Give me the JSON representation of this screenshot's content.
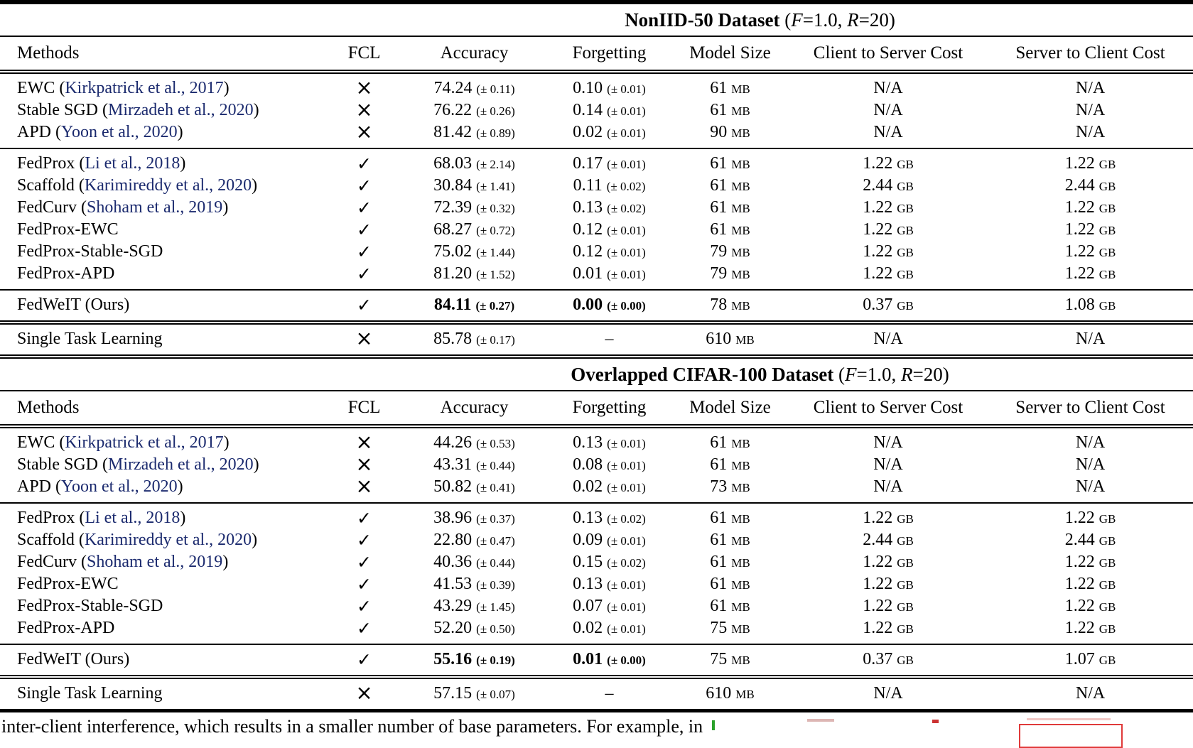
{
  "glyphs": {
    "check": "✓",
    "cross": "×",
    "dash": "–"
  },
  "link_color": "#1b2a6e",
  "columns": [
    "Methods",
    "FCL",
    "Accuracy",
    "Forgetting",
    "Model Size",
    "Client to Server Cost",
    "Server to Client Cost"
  ],
  "tables": [
    {
      "title_parts": [
        {
          "text": "NonIID-50 Dataset",
          "bold": true
        },
        {
          "text": " ("
        },
        {
          "text": "F",
          "italic": true
        },
        {
          "text": "=1.0, "
        },
        {
          "text": "R",
          "italic": true
        },
        {
          "text": "=20)"
        }
      ],
      "groups": [
        {
          "bottom_rule": "single",
          "rows": [
            {
              "method": "EWC",
              "cite": "Kirkpatrick et al., 2017",
              "fcl": false,
              "acc": [
                "74.24",
                "(± 0.11)"
              ],
              "fgt": [
                "0.10",
                "(± 0.01)"
              ],
              "size": [
                "61",
                "MB"
              ],
              "c2s": [
                "N/A",
                ""
              ],
              "s2c": [
                "N/A",
                ""
              ],
              "em": false
            },
            {
              "method": "Stable SGD",
              "cite": "Mirzadeh et al., 2020",
              "fcl": false,
              "acc": [
                "76.22",
                "(± 0.26)"
              ],
              "fgt": [
                "0.14",
                "(± 0.01)"
              ],
              "size": [
                "61",
                "MB"
              ],
              "c2s": [
                "N/A",
                ""
              ],
              "s2c": [
                "N/A",
                ""
              ],
              "em": false
            },
            {
              "method": "APD",
              "cite": "Yoon et al., 2020",
              "fcl": false,
              "acc": [
                "81.42",
                "(± 0.89)"
              ],
              "fgt": [
                "0.02",
                "(± 0.01)"
              ],
              "size": [
                "90",
                "MB"
              ],
              "c2s": [
                "N/A",
                ""
              ],
              "s2c": [
                "N/A",
                ""
              ],
              "em": false
            }
          ]
        },
        {
          "bottom_rule": "single",
          "rows": [
            {
              "method": "FedProx",
              "cite": "Li et al., 2018",
              "fcl": true,
              "acc": [
                "68.03",
                "(± 2.14)"
              ],
              "fgt": [
                "0.17",
                "(± 0.01)"
              ],
              "size": [
                "61",
                "MB"
              ],
              "c2s": [
                "1.22",
                "GB"
              ],
              "s2c": [
                "1.22",
                "GB"
              ],
              "em": false
            },
            {
              "method": "Scaffold",
              "cite": "Karimireddy et al., 2020",
              "fcl": true,
              "acc": [
                "30.84",
                "(± 1.41)"
              ],
              "fgt": [
                "0.11",
                "(± 0.02)"
              ],
              "size": [
                "61",
                "MB"
              ],
              "c2s": [
                "2.44",
                "GB"
              ],
              "s2c": [
                "2.44",
                "GB"
              ],
              "em": false
            },
            {
              "method": "FedCurv",
              "cite": "Shoham et al., 2019",
              "fcl": true,
              "acc": [
                "72.39",
                "(± 0.32)"
              ],
              "fgt": [
                "0.13",
                "(± 0.02)"
              ],
              "size": [
                "61",
                "MB"
              ],
              "c2s": [
                "1.22",
                "GB"
              ],
              "s2c": [
                "1.22",
                "GB"
              ],
              "em": false
            },
            {
              "method": "FedProx-EWC",
              "cite": null,
              "fcl": true,
              "acc": [
                "68.27",
                "(± 0.72)"
              ],
              "fgt": [
                "0.12",
                "(± 0.01)"
              ],
              "size": [
                "61",
                "MB"
              ],
              "c2s": [
                "1.22",
                "GB"
              ],
              "s2c": [
                "1.22",
                "GB"
              ],
              "em": false
            },
            {
              "method": "FedProx-Stable-SGD",
              "cite": null,
              "fcl": true,
              "acc": [
                "75.02",
                "(± 1.44)"
              ],
              "fgt": [
                "0.12",
                "(± 0.01)"
              ],
              "size": [
                "79",
                "MB"
              ],
              "c2s": [
                "1.22",
                "GB"
              ],
              "s2c": [
                "1.22",
                "GB"
              ],
              "em": false
            },
            {
              "method": "FedProx-APD",
              "cite": null,
              "fcl": true,
              "acc": [
                "81.20",
                "(± 1.52)"
              ],
              "fgt": [
                "0.01",
                "(± 0.01)"
              ],
              "size": [
                "79",
                "MB"
              ],
              "c2s": [
                "1.22",
                "GB"
              ],
              "s2c": [
                "1.22",
                "GB"
              ],
              "em": false
            }
          ]
        },
        {
          "bottom_rule": "double",
          "rows": [
            {
              "method": "FedWeIT (Ours)",
              "cite": null,
              "fcl": true,
              "acc": [
                "84.11",
                "(± 0.27)"
              ],
              "fgt": [
                "0.00",
                "(± 0.00)"
              ],
              "size": [
                "78",
                "MB"
              ],
              "c2s": [
                "0.37",
                "GB"
              ],
              "s2c": [
                "1.08",
                "GB"
              ],
              "em": true
            }
          ]
        },
        {
          "bottom_rule": "double",
          "rows": [
            {
              "method": "Single Task Learning",
              "cite": null,
              "fcl": false,
              "acc": [
                "85.78",
                "(± 0.17)"
              ],
              "fgt": [
                "–",
                ""
              ],
              "size": [
                "610",
                "MB"
              ],
              "c2s": [
                "N/A",
                ""
              ],
              "s2c": [
                "N/A",
                ""
              ],
              "em": false
            }
          ]
        }
      ]
    },
    {
      "title_parts": [
        {
          "text": "Overlapped CIFAR-100 Dataset",
          "bold": true
        },
        {
          "text": " ("
        },
        {
          "text": "F",
          "italic": true
        },
        {
          "text": "=1.0, "
        },
        {
          "text": "R",
          "italic": true
        },
        {
          "text": "=20)"
        }
      ],
      "groups": [
        {
          "bottom_rule": "single",
          "rows": [
            {
              "method": "EWC",
              "cite": "Kirkpatrick et al., 2017",
              "fcl": false,
              "acc": [
                "44.26",
                "(± 0.53)"
              ],
              "fgt": [
                "0.13",
                "(± 0.01)"
              ],
              "size": [
                "61",
                "MB"
              ],
              "c2s": [
                "N/A",
                ""
              ],
              "s2c": [
                "N/A",
                ""
              ],
              "em": false
            },
            {
              "method": "Stable SGD",
              "cite": "Mirzadeh et al., 2020",
              "fcl": false,
              "acc": [
                "43.31",
                "(± 0.44)"
              ],
              "fgt": [
                "0.08",
                "(± 0.01)"
              ],
              "size": [
                "61",
                "MB"
              ],
              "c2s": [
                "N/A",
                ""
              ],
              "s2c": [
                "N/A",
                ""
              ],
              "em": false
            },
            {
              "method": "APD",
              "cite": "Yoon et al., 2020",
              "fcl": false,
              "acc": [
                "50.82",
                "(± 0.41)"
              ],
              "fgt": [
                "0.02",
                "(± 0.01)"
              ],
              "size": [
                "73",
                "MB"
              ],
              "c2s": [
                "N/A",
                ""
              ],
              "s2c": [
                "N/A",
                ""
              ],
              "em": false
            }
          ]
        },
        {
          "bottom_rule": "single",
          "rows": [
            {
              "method": "FedProx",
              "cite": "Li et al., 2018",
              "fcl": true,
              "acc": [
                "38.96",
                "(± 0.37)"
              ],
              "fgt": [
                "0.13",
                "(± 0.02)"
              ],
              "size": [
                "61",
                "MB"
              ],
              "c2s": [
                "1.22",
                "GB"
              ],
              "s2c": [
                "1.22",
                "GB"
              ],
              "em": false
            },
            {
              "method": "Scaffold",
              "cite": "Karimireddy et al., 2020",
              "fcl": true,
              "acc": [
                "22.80",
                "(± 0.47)"
              ],
              "fgt": [
                "0.09",
                "(± 0.01)"
              ],
              "size": [
                "61",
                "MB"
              ],
              "c2s": [
                "2.44",
                "GB"
              ],
              "s2c": [
                "2.44",
                "GB"
              ],
              "em": false
            },
            {
              "method": "FedCurv",
              "cite": "Shoham et al., 2019",
              "fcl": true,
              "acc": [
                "40.36",
                "(± 0.44)"
              ],
              "fgt": [
                "0.15",
                "(± 0.02)"
              ],
              "size": [
                "61",
                "MB"
              ],
              "c2s": [
                "1.22",
                "GB"
              ],
              "s2c": [
                "1.22",
                "GB"
              ],
              "em": false
            },
            {
              "method": "FedProx-EWC",
              "cite": null,
              "fcl": true,
              "acc": [
                "41.53",
                "(± 0.39)"
              ],
              "fgt": [
                "0.13",
                "(± 0.01)"
              ],
              "size": [
                "61",
                "MB"
              ],
              "c2s": [
                "1.22",
                "GB"
              ],
              "s2c": [
                "1.22",
                "GB"
              ],
              "em": false
            },
            {
              "method": "FedProx-Stable-SGD",
              "cite": null,
              "fcl": true,
              "acc": [
                "43.29",
                "(± 1.45)"
              ],
              "fgt": [
                "0.07",
                "(± 0.01)"
              ],
              "size": [
                "61",
                "MB"
              ],
              "c2s": [
                "1.22",
                "GB"
              ],
              "s2c": [
                "1.22",
                "GB"
              ],
              "em": false
            },
            {
              "method": "FedProx-APD",
              "cite": null,
              "fcl": true,
              "acc": [
                "52.20",
                "(± 0.50)"
              ],
              "fgt": [
                "0.02",
                "(± 0.01)"
              ],
              "size": [
                "75",
                "MB"
              ],
              "c2s": [
                "1.22",
                "GB"
              ],
              "s2c": [
                "1.22",
                "GB"
              ],
              "em": false
            }
          ]
        },
        {
          "bottom_rule": "double",
          "rows": [
            {
              "method": "FedWeIT (Ours)",
              "cite": null,
              "fcl": true,
              "acc": [
                "55.16",
                "(± 0.19)"
              ],
              "fgt": [
                "0.01",
                "(± 0.00)"
              ],
              "size": [
                "75",
                "MB"
              ],
              "c2s": [
                "0.37",
                "GB"
              ],
              "s2c": [
                "1.07",
                "GB"
              ],
              "em": true
            }
          ]
        },
        {
          "bottom_rule": "thick",
          "rows": [
            {
              "method": "Single Task Learning",
              "cite": null,
              "fcl": false,
              "acc": [
                "57.15",
                "(± 0.07)"
              ],
              "fgt": [
                "–",
                ""
              ],
              "size": [
                "610",
                "MB"
              ],
              "c2s": [
                "N/A",
                ""
              ],
              "s2c": [
                "N/A",
                ""
              ],
              "em": false
            }
          ]
        }
      ]
    }
  ],
  "footer": {
    "clipped_text": "inter-client interference, which results in a smaller number of base parameters. For example, in"
  }
}
